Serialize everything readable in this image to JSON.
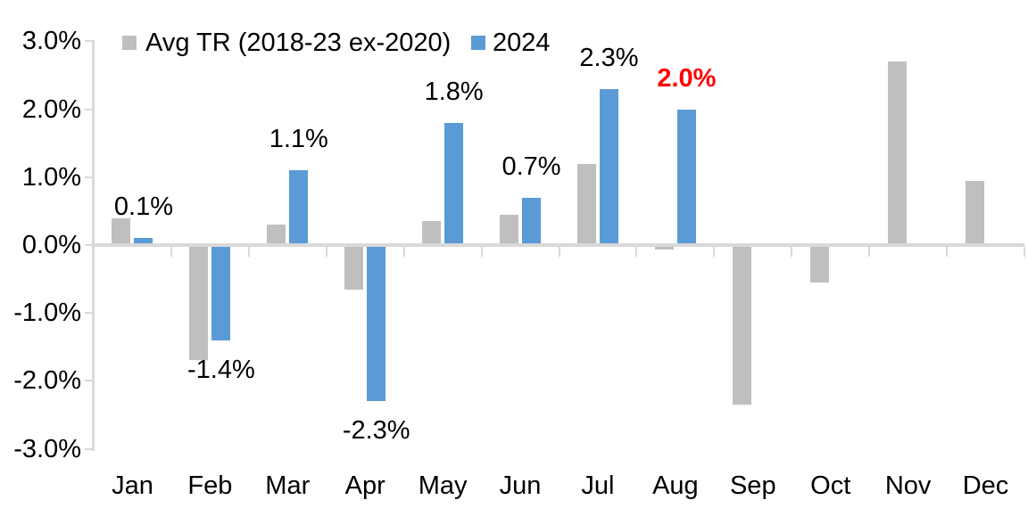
{
  "chart_data": {
    "type": "bar",
    "categories": [
      "Jan",
      "Feb",
      "Mar",
      "Apr",
      "May",
      "Jun",
      "Jul",
      "Aug",
      "Sep",
      "Oct",
      "Nov",
      "Dec"
    ],
    "y_axis": {
      "min": -3,
      "max": 3,
      "step": 1,
      "tick_labels": [
        "3.0%",
        "2.0%",
        "1.0%",
        "0.0%",
        "-1.0%",
        "-2.0%",
        "-3.0%"
      ],
      "grid": false
    },
    "legend": {
      "position": "top"
    },
    "series": [
      {
        "name": "Avg TR (2018-23 ex-2020)",
        "color": "#BFBFBF",
        "values": [
          0.4,
          -1.7,
          0.3,
          -0.65,
          0.35,
          0.45,
          1.2,
          -0.07,
          -2.35,
          -0.55,
          2.7,
          0.95
        ]
      },
      {
        "name": "2024",
        "color": "#5B9BD5",
        "values": [
          0.1,
          -1.4,
          1.1,
          -2.3,
          1.8,
          0.7,
          2.3,
          2.0,
          null,
          null,
          null,
          null
        ],
        "data_labels": [
          {
            "text": "0.1%",
            "color": "#000000",
            "bold": false
          },
          {
            "text": "-1.4%",
            "color": "#000000",
            "bold": false
          },
          {
            "text": "1.1%",
            "color": "#000000",
            "bold": false
          },
          {
            "text": "-2.3%",
            "color": "#000000",
            "bold": false
          },
          {
            "text": "1.8%",
            "color": "#000000",
            "bold": false
          },
          {
            "text": "0.7%",
            "color": "#000000",
            "bold": false
          },
          {
            "text": "2.3%",
            "color": "#000000",
            "bold": false
          },
          {
            "text": "2.0%",
            "color": "#FF0000",
            "bold": true
          },
          null,
          null,
          null,
          null
        ]
      }
    ],
    "colors": {
      "axis": "#D9D9D9",
      "highlight": "#FF0000",
      "background": "#FFFFFF"
    }
  }
}
